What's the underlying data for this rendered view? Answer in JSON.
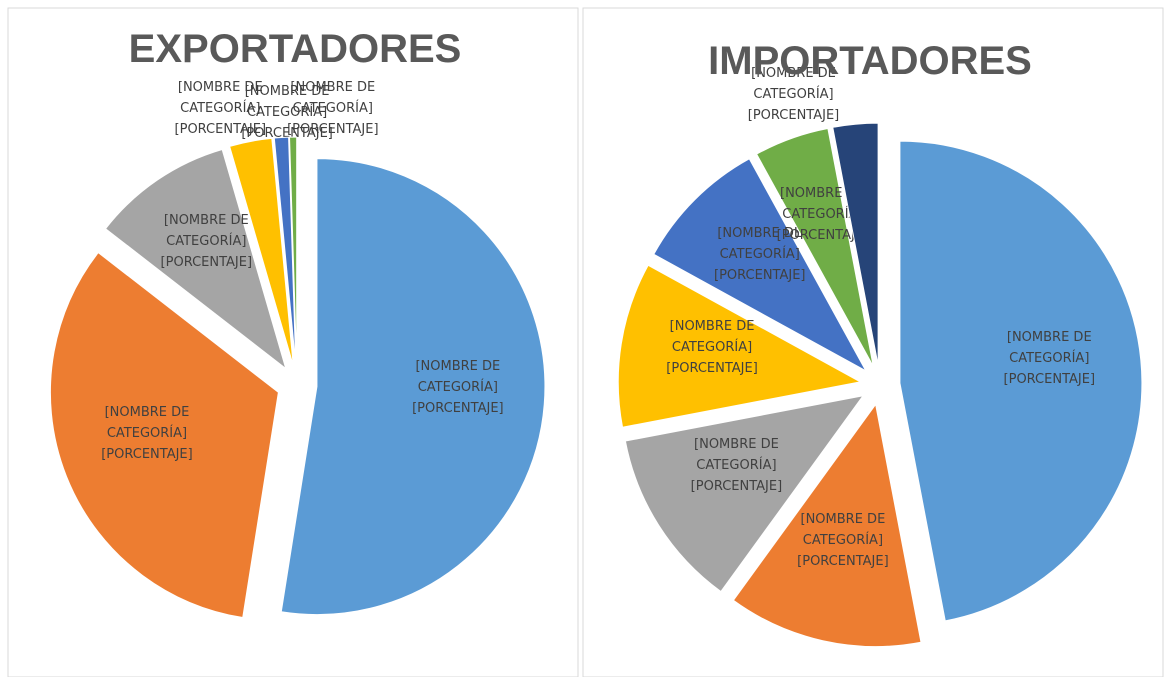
{
  "chart_data": [
    {
      "type": "pie",
      "title": "EXPORTADORES",
      "data_labels": [
        "[NOMBRE DE CATEGORÍA] [PORCENTAJE]",
        "[NOMBRE DE CATEGORÍA] [PORCENTAJE]",
        "[NOMBRE DE CATEGORÍA] [PORCENTAJE]",
        "[NOMBRE DE CATEGORÍA] [PORCENTAJE]",
        "[NOMBRE DE CATEGORÍA] [PORCENTAJE]",
        "[NOMBRE DE CATEGORÍA] [PORCENTAJE]"
      ],
      "values": [
        52.5,
        33,
        10,
        3,
        1,
        0.5
      ],
      "colors": [
        "#5b9bd5",
        "#ed7d31",
        "#a5a5a5",
        "#ffc000",
        "#4472c4",
        "#70ad47"
      ]
    },
    {
      "type": "pie",
      "title": "IMPORTADORES",
      "data_labels": [
        "[NOMBRE DE CATEGORÍA] [PORCENTAJE]",
        "[NOMBRE DE CATEGORÍA] [PORCENTAJE]",
        "[NOMBRE DE CATEGORÍA] [PORCENTAJE]",
        "[NOMBRE DE CATEGORÍA] [PORCENTAJE]",
        "[NOMBRE DE CATEGORÍA] [PORCENTAJE]",
        "[NOMBRE DE CATEGORÍA] [PORCENTAJE]",
        "[NOMBRE DE CATEGORÍA] [PORCENTAJE]"
      ],
      "values": [
        47,
        13,
        12,
        11,
        9,
        5,
        3
      ],
      "colors": [
        "#5b9bd5",
        "#ed7d31",
        "#a5a5a5",
        "#ffc000",
        "#4472c4",
        "#70ad47",
        "#264478"
      ]
    }
  ]
}
